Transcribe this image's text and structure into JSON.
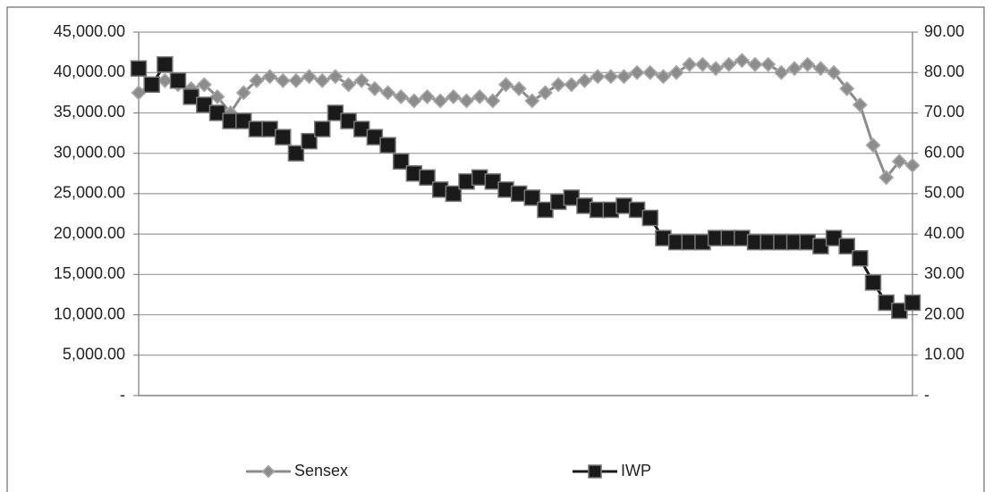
{
  "chart_data": {
    "type": "line",
    "categories": [
      null,
      null,
      null,
      null,
      null,
      null,
      null,
      null,
      null,
      null,
      null,
      null,
      null,
      null,
      null,
      null,
      null,
      null,
      null,
      null,
      null,
      null,
      null,
      null,
      null,
      null,
      null,
      null,
      null,
      null,
      null,
      null,
      null,
      null,
      null,
      null,
      null,
      null,
      null,
      null,
      null,
      null,
      null,
      null,
      null,
      null,
      null,
      null,
      null,
      null,
      null,
      null,
      null,
      null,
      null,
      null,
      null,
      null,
      null,
      null
    ],
    "series": [
      {
        "name": "Sensex",
        "color": "#8c8c8c",
        "marker": "diamond",
        "axis": "y",
        "values": [
          37500,
          38500,
          39000,
          38500,
          38000,
          38500,
          37000,
          35000,
          37500,
          39000,
          39500,
          39000,
          39000,
          39500,
          39000,
          39500,
          38500,
          39000,
          38000,
          37500,
          37000,
          36500,
          37000,
          36500,
          37000,
          36500,
          37000,
          36500,
          38500,
          38000,
          36500,
          37500,
          38500,
          38500,
          39000,
          39500,
          39500,
          39500,
          40000,
          40000,
          39500,
          40000,
          41000,
          41000,
          40500,
          41000,
          41500,
          41000,
          41000,
          40000,
          40500,
          41000,
          40500,
          40000,
          38000,
          36000,
          31000,
          27000,
          29000,
          28500
        ]
      },
      {
        "name": "IWP",
        "color": "#1a1a1a",
        "marker": "square",
        "axis": "y2",
        "values": [
          81,
          77,
          82,
          78,
          74,
          72,
          70,
          68,
          68,
          66,
          66,
          64,
          60,
          63,
          66,
          70,
          68,
          66,
          64,
          62,
          58,
          55,
          54,
          51,
          50,
          53,
          54,
          53,
          51,
          50,
          49,
          46,
          48,
          49,
          47,
          46,
          46,
          47,
          46,
          44,
          39,
          38,
          38,
          38,
          39,
          39,
          39,
          38,
          38,
          38,
          38,
          38,
          37,
          39,
          37,
          34,
          28,
          23,
          21,
          23
        ]
      }
    ],
    "ylim": [
      0,
      45000
    ],
    "yticks": [
      {
        "value": 0,
        "label": "-"
      },
      {
        "value": 5000,
        "label": "5,000.00"
      },
      {
        "value": 10000,
        "label": "10,000.00"
      },
      {
        "value": 15000,
        "label": "15,000.00"
      },
      {
        "value": 20000,
        "label": "20,000.00"
      },
      {
        "value": 25000,
        "label": "25,000.00"
      },
      {
        "value": 30000,
        "label": "30,000.00"
      },
      {
        "value": 35000,
        "label": "35,000.00"
      },
      {
        "value": 40000,
        "label": "40,000.00"
      },
      {
        "value": 45000,
        "label": "45,000.00"
      }
    ],
    "y2lim": [
      0,
      90
    ],
    "y2ticks": [
      {
        "value": 0,
        "label": "-"
      },
      {
        "value": 10,
        "label": "10.00"
      },
      {
        "value": 20,
        "label": "20.00"
      },
      {
        "value": 30,
        "label": "30.00"
      },
      {
        "value": 40,
        "label": "40.00"
      },
      {
        "value": 50,
        "label": "50.00"
      },
      {
        "value": 60,
        "label": "60.00"
      },
      {
        "value": 70,
        "label": "70.00"
      },
      {
        "value": 80,
        "label": "80.00"
      },
      {
        "value": 90,
        "label": "90.00"
      }
    ],
    "grid": true,
    "legend": "bottom"
  }
}
